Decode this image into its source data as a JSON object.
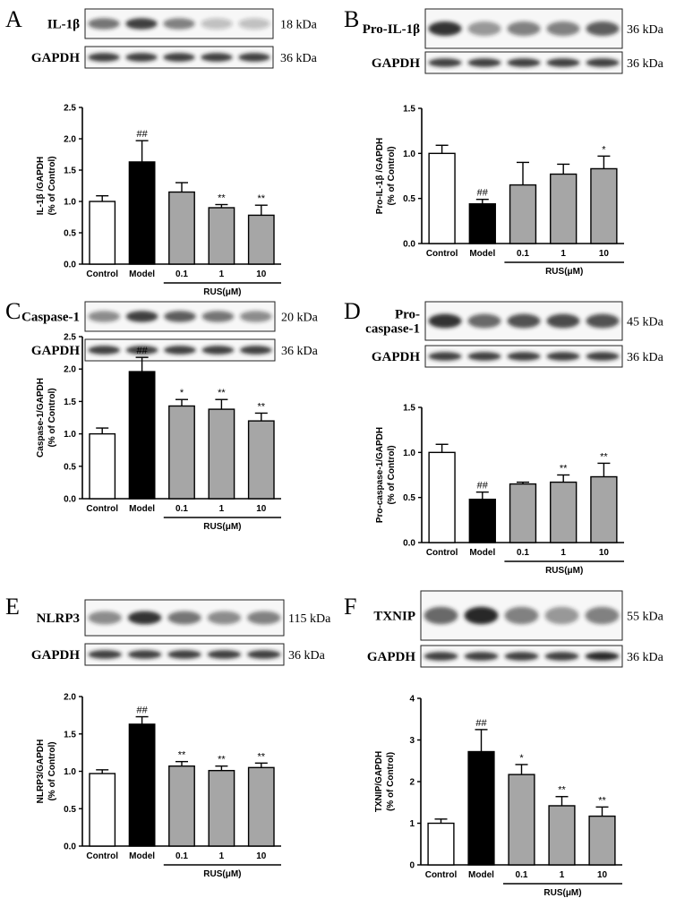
{
  "figure": {
    "colors": {
      "control": "#ffffff",
      "model": "#000000",
      "rus": "#a6a6a6",
      "blot": "#1e1e1e"
    },
    "panels": [
      {
        "letter": "A",
        "blots": [
          {
            "protein": "IL-1β",
            "kda": "18 kDa",
            "intensity": [
              0.6,
              0.85,
              0.55,
              0.25,
              0.25
            ]
          },
          {
            "protein": "GAPDH",
            "kda": "36 kDa",
            "intensity": [
              0.85,
              0.85,
              0.85,
              0.85,
              0.85
            ]
          }
        ],
        "chart": {
          "type": "bar",
          "categories": [
            "Control",
            "Model",
            "0.1",
            "1",
            "10"
          ],
          "values": [
            1.0,
            1.63,
            1.15,
            0.9,
            0.78
          ],
          "errors": [
            0.09,
            0.34,
            0.15,
            0.05,
            0.16
          ],
          "significance": [
            "",
            "##",
            "",
            "**",
            "**"
          ],
          "ylabel": [
            "IL-1β /GAPDH",
            "(% of Control)"
          ],
          "ylim": [
            0,
            2.5
          ],
          "yticks": [
            "0.0",
            "0.5",
            "1.0",
            "1.5",
            "2.0",
            "2.5"
          ],
          "group_label": "RUS(μM)"
        }
      },
      {
        "letter": "B",
        "blots": [
          {
            "protein": "Pro-IL-1β",
            "kda": "36 kDa",
            "intensity": [
              0.9,
              0.45,
              0.55,
              0.55,
              0.7
            ]
          },
          {
            "protein": "GAPDH",
            "kda": "36 kDa",
            "intensity": [
              0.85,
              0.85,
              0.85,
              0.85,
              0.85
            ]
          }
        ],
        "chart": {
          "type": "bar",
          "categories": [
            "Control",
            "Model",
            "0.1",
            "1",
            "10"
          ],
          "values": [
            1.0,
            0.44,
            0.65,
            0.77,
            0.83
          ],
          "errors": [
            0.09,
            0.05,
            0.25,
            0.11,
            0.14
          ],
          "significance": [
            "",
            "##",
            "",
            "",
            "*"
          ],
          "ylabel": [
            "Pro-IL-1β /GAPDH",
            "(% of Control)"
          ],
          "ylim": [
            0,
            1.5
          ],
          "yticks": [
            "0.0",
            "0.5",
            "1.0",
            "1.5"
          ],
          "group_label": "RUS(μM)"
        }
      },
      {
        "letter": "C",
        "blots": [
          {
            "protein": "Caspase-1",
            "kda": "20 kDa",
            "intensity": [
              0.5,
              0.85,
              0.7,
              0.6,
              0.5
            ]
          },
          {
            "protein": "GAPDH",
            "kda": "36 kDa",
            "intensity": [
              0.85,
              0.85,
              0.85,
              0.85,
              0.85
            ]
          }
        ],
        "chart": {
          "type": "bar",
          "categories": [
            "Control",
            "Model",
            "0.1",
            "1",
            "10"
          ],
          "values": [
            1.0,
            1.96,
            1.43,
            1.38,
            1.2
          ],
          "errors": [
            0.09,
            0.22,
            0.1,
            0.15,
            0.12
          ],
          "significance": [
            "",
            "##",
            "*",
            "**",
            "**"
          ],
          "ylabel": [
            "Caspase-1/GAPDH",
            "(% of Control)"
          ],
          "ylim": [
            0,
            2.5
          ],
          "yticks": [
            "0.0",
            "0.5",
            "1.0",
            "1.5",
            "2.0",
            "2.5"
          ],
          "group_label": "RUS(μM)"
        }
      },
      {
        "letter": "D",
        "blots": [
          {
            "protein": "Pro-\ncaspase-1",
            "kda": "45 kDa",
            "intensity": [
              0.9,
              0.65,
              0.75,
              0.8,
              0.75
            ]
          },
          {
            "protein": "GAPDH",
            "kda": "36 kDa",
            "intensity": [
              0.85,
              0.85,
              0.85,
              0.85,
              0.85
            ]
          }
        ],
        "chart": {
          "type": "bar",
          "categories": [
            "Control",
            "Model",
            "0.1",
            "1",
            "10"
          ],
          "values": [
            1.0,
            0.48,
            0.65,
            0.67,
            0.73
          ],
          "errors": [
            0.09,
            0.08,
            0.02,
            0.08,
            0.15
          ],
          "significance": [
            "",
            "##",
            "",
            "**",
            "**"
          ],
          "ylabel": [
            "Pro-caspase-1/GAPDH",
            "(% of Control)"
          ],
          "ylim": [
            0,
            1.5
          ],
          "yticks": [
            "0.0",
            "0.5",
            "1.0",
            "1.5"
          ],
          "group_label": "RUS(μM)"
        }
      },
      {
        "letter": "E",
        "blots": [
          {
            "protein": "NLRP3",
            "kda": "115 kDa",
            "intensity": [
              0.5,
              0.9,
              0.6,
              0.5,
              0.55
            ]
          },
          {
            "protein": "GAPDH",
            "kda": "36 kDa",
            "intensity": [
              0.85,
              0.85,
              0.85,
              0.85,
              0.85
            ]
          }
        ],
        "chart": {
          "type": "bar",
          "categories": [
            "Control",
            "Model",
            "0.1",
            "1",
            "10"
          ],
          "values": [
            0.97,
            1.63,
            1.07,
            1.01,
            1.05
          ],
          "errors": [
            0.05,
            0.1,
            0.06,
            0.06,
            0.06
          ],
          "significance": [
            "",
            "##",
            "**",
            "**",
            "**"
          ],
          "ylabel": [
            "NLRP3/GAPDH",
            "(% of Control)"
          ],
          "ylim": [
            0,
            2.0
          ],
          "yticks": [
            "0.0",
            "0.5",
            "1.0",
            "1.5",
            "2.0"
          ],
          "group_label": "RUS(μM)"
        }
      },
      {
        "letter": "F",
        "blots": [
          {
            "protein": "TXNIP",
            "kda": "55 kDa",
            "intensity": [
              0.65,
              0.95,
              0.55,
              0.45,
              0.55
            ]
          },
          {
            "protein": "GAPDH",
            "kda": "36 kDa",
            "intensity": [
              0.85,
              0.85,
              0.85,
              0.85,
              0.95
            ]
          }
        ],
        "chart": {
          "type": "bar",
          "categories": [
            "Control",
            "Model",
            "0.1",
            "1",
            "10"
          ],
          "values": [
            1.0,
            2.72,
            2.17,
            1.42,
            1.17
          ],
          "errors": [
            0.1,
            0.53,
            0.24,
            0.22,
            0.22
          ],
          "significance": [
            "",
            "##",
            "*",
            "**",
            "**"
          ],
          "ylabel": [
            "TXNIP/GAPDH",
            "(% of Control)"
          ],
          "ylim": [
            0,
            4
          ],
          "yticks": [
            "0",
            "1",
            "2",
            "3",
            "4"
          ],
          "group_label": "RUS(μM)"
        }
      }
    ]
  }
}
